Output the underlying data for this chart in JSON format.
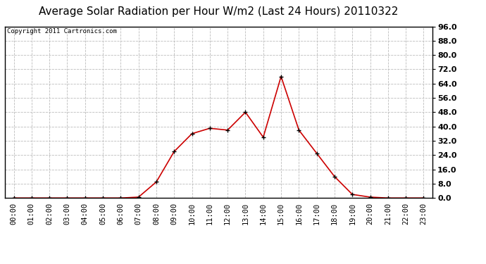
{
  "title": "Average Solar Radiation per Hour W/m2 (Last 24 Hours) 20110322",
  "copyright_text": "Copyright 2011 Cartronics.com",
  "hours": [
    "00:00",
    "01:00",
    "02:00",
    "03:00",
    "04:00",
    "05:00",
    "06:00",
    "07:00",
    "08:00",
    "09:00",
    "10:00",
    "11:00",
    "12:00",
    "13:00",
    "14:00",
    "15:00",
    "16:00",
    "17:00",
    "18:00",
    "19:00",
    "20:00",
    "21:00",
    "22:00",
    "23:00"
  ],
  "values": [
    0.0,
    0.0,
    0.0,
    0.0,
    0.0,
    0.0,
    0.0,
    0.5,
    9.0,
    26.0,
    36.0,
    39.0,
    38.0,
    48.0,
    34.0,
    68.0,
    38.0,
    25.0,
    12.0,
    2.0,
    0.5,
    0.0,
    0.0,
    0.0
  ],
  "line_color": "#cc0000",
  "marker": "+",
  "marker_size": 5,
  "marker_linewidth": 1.0,
  "bg_color": "#ffffff",
  "plot_bg_color": "#ffffff",
  "grid_color": "#bbbbbb",
  "grid_linestyle": "--",
  "ylim": [
    0.0,
    96.0
  ],
  "yticks": [
    0.0,
    8.0,
    16.0,
    24.0,
    32.0,
    40.0,
    48.0,
    56.0,
    64.0,
    72.0,
    80.0,
    88.0,
    96.0
  ],
  "title_fontsize": 11,
  "copyright_fontsize": 6.5,
  "tick_label_fontsize": 7.5,
  "ytick_label_fontsize": 8,
  "line_width": 1.2
}
